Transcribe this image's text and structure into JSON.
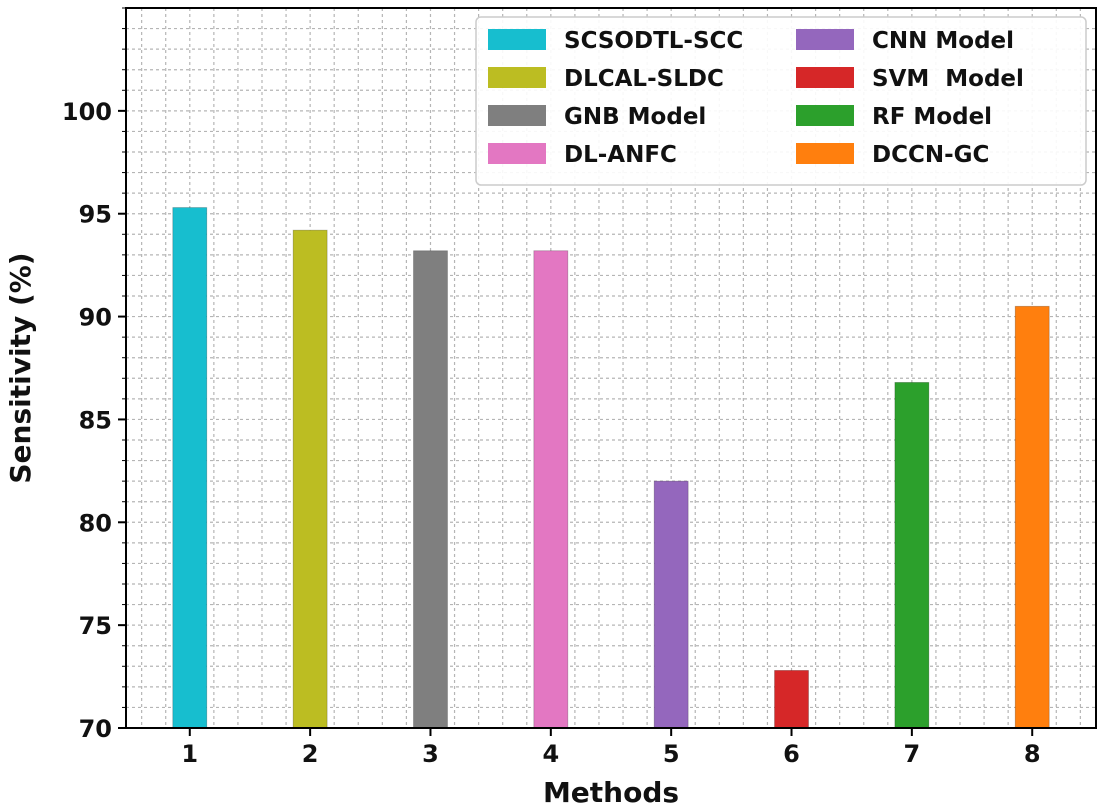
{
  "chart_data": {
    "type": "bar",
    "title": "",
    "xlabel": "Methods",
    "ylabel": "Sensitivity (%)",
    "categories": [
      "1",
      "2",
      "3",
      "4",
      "5",
      "6",
      "7",
      "8"
    ],
    "series_names": [
      "SCSODTL-SCC",
      "DLCAL-SLDC",
      "GNB Model",
      "DL-ANFC",
      "CNN Model",
      "SVM  Model",
      "RF Model",
      "DCCN-GC"
    ],
    "values": [
      95.3,
      94.2,
      93.2,
      93.2,
      82.0,
      72.8,
      86.8,
      90.5
    ],
    "colors": [
      "#17becf",
      "#bcbd22",
      "#7f7f7f",
      "#e377c2",
      "#9467bd",
      "#d62728",
      "#2ca02c",
      "#ff7f0e"
    ],
    "ylim": [
      70,
      105
    ],
    "yticks": [
      "70",
      "75",
      "80",
      "85",
      "90",
      "95",
      "100"
    ],
    "grid": true,
    "legend_position": "top-right",
    "legend_columns": 2
  }
}
